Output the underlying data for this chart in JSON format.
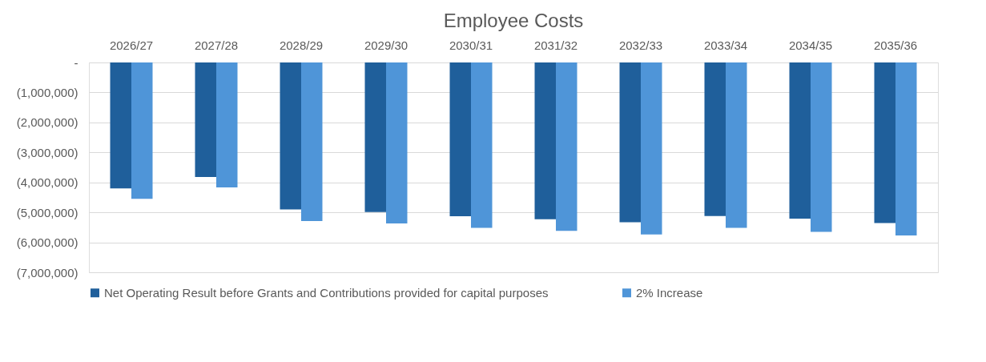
{
  "chart_data": {
    "type": "bar",
    "title": "Employee Costs",
    "categories": [
      "2026/27",
      "2027/28",
      "2028/29",
      "2029/30",
      "2030/31",
      "2031/32",
      "2032/33",
      "2033/34",
      "2034/35",
      "2035/36"
    ],
    "series": [
      {
        "name": "Net Operating Result before Grants and Contributions provided for capital purposes",
        "color": "#1f5f9b",
        "values": [
          -4200000,
          -3820000,
          -4900000,
          -4990000,
          -5130000,
          -5230000,
          -5330000,
          -5120000,
          -5210000,
          -5360000
        ]
      },
      {
        "name": "2% Increase",
        "color": "#4f95d8",
        "values": [
          -4550000,
          -4170000,
          -5290000,
          -5370000,
          -5520000,
          -5620000,
          -5740000,
          -5520000,
          -5650000,
          -5770000
        ]
      }
    ],
    "ylim": [
      -7000000,
      0
    ],
    "yticks": [
      {
        "value": 0,
        "label": "-"
      },
      {
        "value": -1000000,
        "label": "(1,000,000)"
      },
      {
        "value": -2000000,
        "label": "(2,000,000)"
      },
      {
        "value": -3000000,
        "label": "(3,000,000)"
      },
      {
        "value": -4000000,
        "label": "(4,000,000)"
      },
      {
        "value": -5000000,
        "label": "(5,000,000)"
      },
      {
        "value": -6000000,
        "label": "(6,000,000)"
      },
      {
        "value": -7000000,
        "label": "(7,000,000)"
      }
    ],
    "grid": "y",
    "legend": "bottom"
  }
}
